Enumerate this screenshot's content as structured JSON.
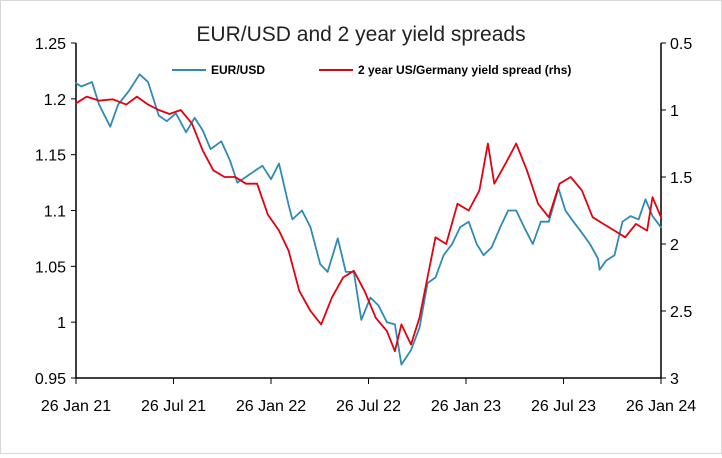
{
  "chart_data": {
    "type": "line",
    "title": "EUR/USD and 2 year yield spreads",
    "xlabel": "",
    "ylabel": "",
    "y2label": "",
    "x_ticks": [
      "26 Jan 21",
      "26 Jul 21",
      "26 Jan 22",
      "26 Jul 22",
      "26 Jan 23",
      "26 Jul 23",
      "26 Jan 24"
    ],
    "x_range": [
      "2021-01-26",
      "2024-01-26"
    ],
    "ylim": [
      0.95,
      1.25
    ],
    "y_ticks": [
      "0.95",
      "1",
      "1.05",
      "1.1",
      "1.15",
      "1.2",
      "1.25"
    ],
    "y2lim": [
      0.5,
      3
    ],
    "y2_inverted": true,
    "y2_ticks": [
      "0.5",
      "1",
      "1.5",
      "2",
      "2.5",
      "3"
    ],
    "grid": false,
    "legend": "top",
    "series": [
      {
        "name": "EUR/USD",
        "axis": "left",
        "color": "#2e8bb5",
        "x": [
          "2021-01-26",
          "2021-02-05",
          "2021-02-25",
          "2021-03-10",
          "2021-03-31",
          "2021-04-15",
          "2021-05-05",
          "2021-05-25",
          "2021-06-10",
          "2021-06-30",
          "2021-07-15",
          "2021-08-01",
          "2021-08-20",
          "2021-09-05",
          "2021-09-20",
          "2021-10-05",
          "2021-10-25",
          "2021-11-10",
          "2021-11-24",
          "2021-12-10",
          "2021-12-31",
          "2022-01-10",
          "2022-01-26",
          "2022-02-10",
          "2022-02-28",
          "2022-03-07",
          "2022-03-25",
          "2022-04-10",
          "2022-04-28",
          "2022-05-12",
          "2022-05-31",
          "2022-06-15",
          "2022-06-30",
          "2022-07-14",
          "2022-07-31",
          "2022-08-15",
          "2022-08-31",
          "2022-09-15",
          "2022-09-27",
          "2022-10-15",
          "2022-10-31",
          "2022-11-15",
          "2022-11-30",
          "2022-12-15",
          "2022-12-31",
          "2023-01-15",
          "2023-01-31",
          "2023-02-15",
          "2023-02-28",
          "2023-03-15",
          "2023-03-31",
          "2023-04-15",
          "2023-04-30",
          "2023-05-15",
          "2023-05-31",
          "2023-06-15",
          "2023-06-30",
          "2023-07-18",
          "2023-07-31",
          "2023-08-15",
          "2023-08-31",
          "2023-09-15",
          "2023-09-30",
          "2023-10-03",
          "2023-10-15",
          "2023-10-31",
          "2023-11-15",
          "2023-11-30",
          "2023-12-15",
          "2023-12-28",
          "2024-01-10",
          "2024-01-26"
        ],
        "values": [
          1.214,
          1.211,
          1.215,
          1.195,
          1.175,
          1.195,
          1.207,
          1.222,
          1.215,
          1.185,
          1.18,
          1.187,
          1.17,
          1.183,
          1.172,
          1.155,
          1.162,
          1.145,
          1.125,
          1.13,
          1.137,
          1.14,
          1.128,
          1.142,
          1.105,
          1.092,
          1.1,
          1.085,
          1.052,
          1.045,
          1.075,
          1.045,
          1.045,
          1.002,
          1.022,
          1.015,
          1.0,
          0.998,
          0.962,
          0.975,
          0.995,
          1.035,
          1.04,
          1.06,
          1.07,
          1.085,
          1.09,
          1.07,
          1.06,
          1.067,
          1.085,
          1.1,
          1.1,
          1.085,
          1.07,
          1.09,
          1.09,
          1.12,
          1.1,
          1.09,
          1.08,
          1.07,
          1.057,
          1.047,
          1.055,
          1.06,
          1.09,
          1.095,
          1.092,
          1.11,
          1.095,
          1.085
        ]
      },
      {
        "name": "2 year US/Germany yield spread (rhs)",
        "axis": "right",
        "color": "#e4000f",
        "x": [
          "2021-01-26",
          "2021-02-15",
          "2021-03-10",
          "2021-04-05",
          "2021-04-30",
          "2021-05-20",
          "2021-06-10",
          "2021-06-30",
          "2021-07-20",
          "2021-08-10",
          "2021-08-31",
          "2021-09-20",
          "2021-10-10",
          "2021-10-31",
          "2021-11-20",
          "2021-12-10",
          "2021-12-31",
          "2022-01-20",
          "2022-02-10",
          "2022-02-28",
          "2022-03-20",
          "2022-04-10",
          "2022-04-30",
          "2022-05-20",
          "2022-06-10",
          "2022-06-30",
          "2022-07-20",
          "2022-08-10",
          "2022-08-31",
          "2022-09-15",
          "2022-09-27",
          "2022-10-15",
          "2022-10-31",
          "2022-11-15",
          "2022-11-30",
          "2022-12-20",
          "2023-01-10",
          "2023-01-31",
          "2023-02-20",
          "2023-03-08",
          "2023-03-20",
          "2023-04-10",
          "2023-04-30",
          "2023-05-20",
          "2023-06-10",
          "2023-06-30",
          "2023-07-20",
          "2023-08-10",
          "2023-08-31",
          "2023-09-20",
          "2023-10-10",
          "2023-10-31",
          "2023-11-20",
          "2023-12-10",
          "2023-12-31",
          "2024-01-10",
          "2024-01-26"
        ],
        "values": [
          0.95,
          0.9,
          0.93,
          0.92,
          0.96,
          0.9,
          0.96,
          1.0,
          1.03,
          1.0,
          1.1,
          1.3,
          1.45,
          1.5,
          1.5,
          1.55,
          1.55,
          1.78,
          1.9,
          2.05,
          2.35,
          2.5,
          2.6,
          2.4,
          2.25,
          2.2,
          2.35,
          2.55,
          2.65,
          2.8,
          2.6,
          2.75,
          2.55,
          2.25,
          1.95,
          2.0,
          1.7,
          1.75,
          1.6,
          1.25,
          1.55,
          1.4,
          1.25,
          1.45,
          1.7,
          1.8,
          1.55,
          1.5,
          1.6,
          1.8,
          1.85,
          1.9,
          1.95,
          1.85,
          1.9,
          1.65,
          1.8
        ]
      }
    ]
  }
}
